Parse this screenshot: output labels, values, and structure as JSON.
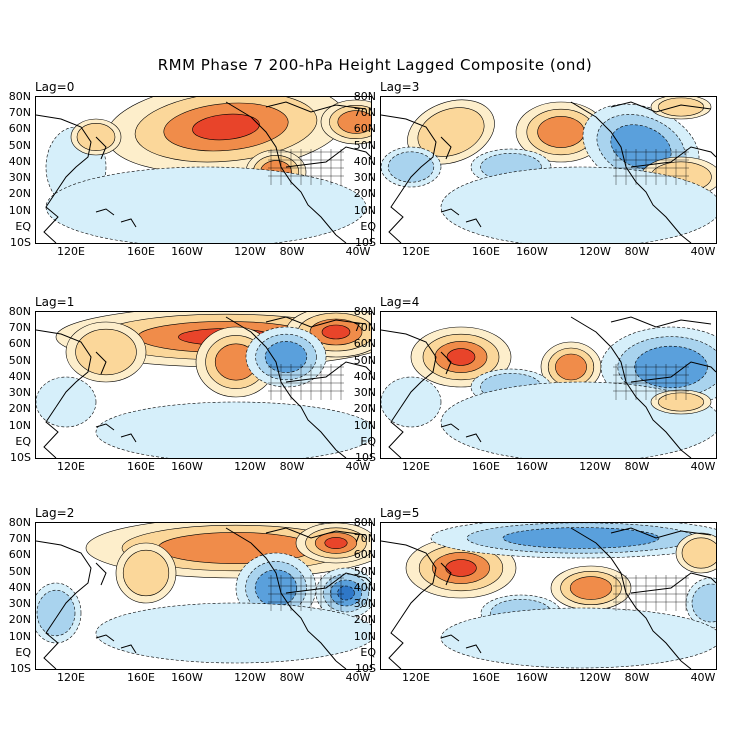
{
  "title": "RMM Phase 7 200-hPa Height Lagged Composite (ond)",
  "colors": {
    "strong_positive": "#e8442a",
    "positive": "#f08c4a",
    "weak_positive": "#fbd79a",
    "faint_positive": "#fdeecb",
    "faint_negative": "#d6effa",
    "weak_negative": "#a9d3ee",
    "negative": "#5aa0dc",
    "strong_negative": "#2f78c8",
    "coastline": "#000000"
  },
  "y_ticks": [
    "80N",
    "70N",
    "60N",
    "50N",
    "40N",
    "30N",
    "20N",
    "10N",
    "EQ",
    "10S"
  ],
  "x_ticks": [
    "120E",
    "160E",
    "160W",
    "120W",
    "80W",
    "40W"
  ],
  "panels": [
    {
      "label": "Lag=0"
    },
    {
      "label": "Lag=3"
    },
    {
      "label": "Lag=1"
    },
    {
      "label": "Lag=4"
    },
    {
      "label": "Lag=2"
    },
    {
      "label": "Lag=5"
    }
  ]
}
